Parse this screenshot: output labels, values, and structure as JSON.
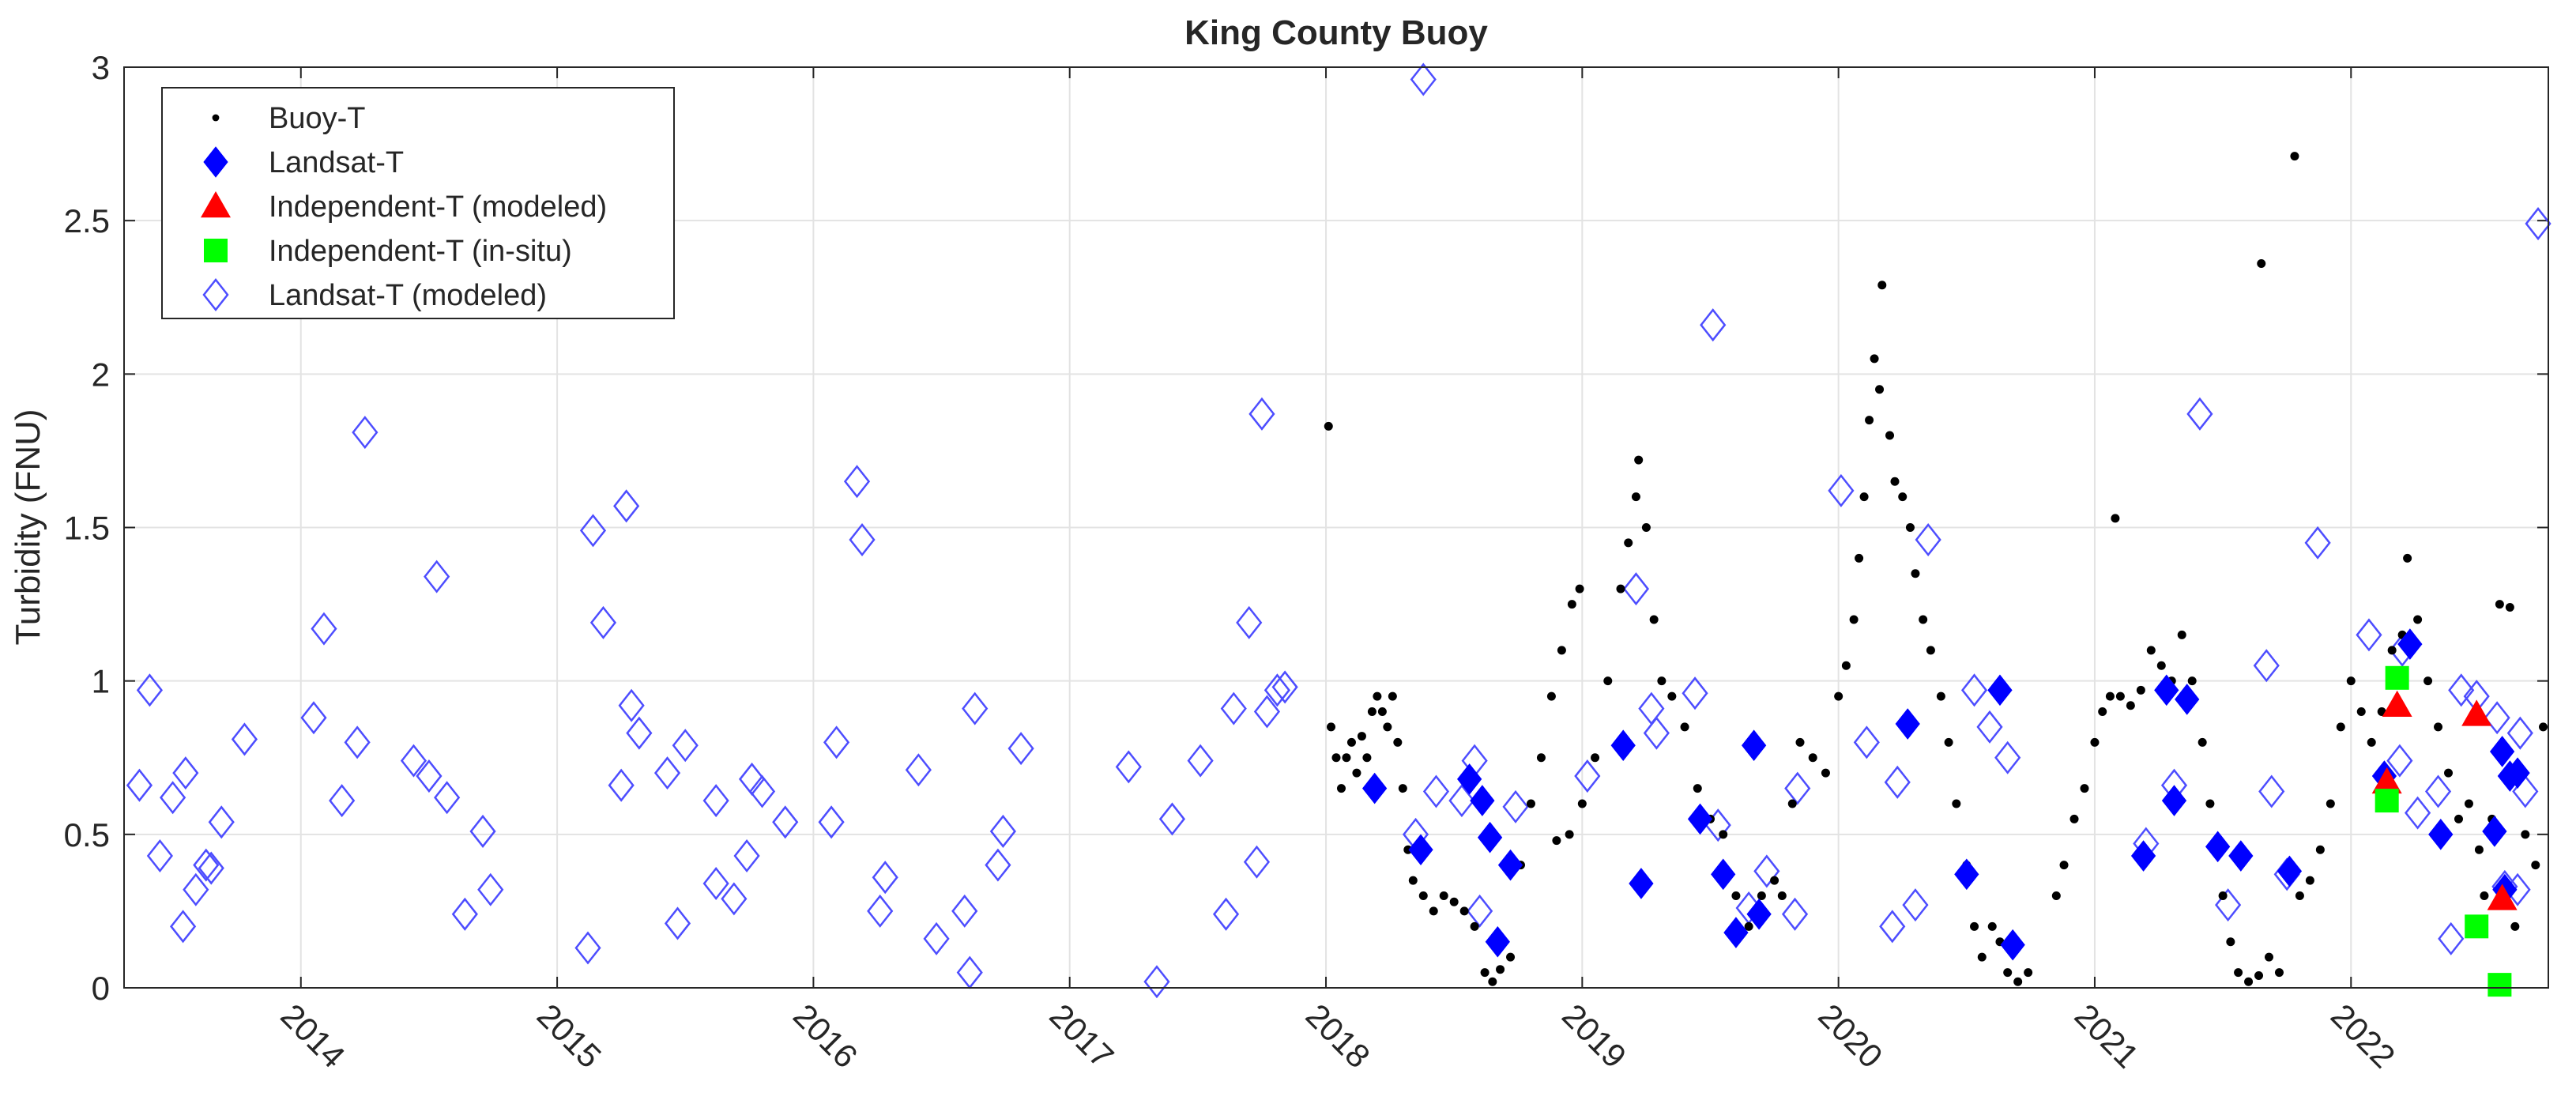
{
  "chart_data": {
    "type": "scatter",
    "title": "King County Buoy",
    "y_label": "Turbidity (FNU)",
    "xlim": [
      2013.31,
      2022.77
    ],
    "ylim": [
      0,
      3
    ],
    "xticks": [
      2014,
      2015,
      2016,
      2017,
      2018,
      2019,
      2020,
      2021,
      2022
    ],
    "yticks": [
      0,
      0.5,
      1,
      1.5,
      2,
      2.5,
      3
    ],
    "grid": true,
    "legend": "upper left",
    "series": [
      {
        "name": "Buoy-T",
        "color": "#000000",
        "marker": "dot",
        "x": [
          2018.01,
          2018.02,
          2018.04,
          2018.06,
          2018.08,
          2018.1,
          2018.12,
          2018.14,
          2018.16,
          2018.18,
          2018.2,
          2018.22,
          2018.24,
          2018.26,
          2018.28,
          2018.3,
          2018.32,
          2018.34,
          2018.38,
          2018.42,
          2018.46,
          2018.5,
          2018.54,
          2018.58,
          2018.62,
          2018.65,
          2018.68,
          2018.72,
          2018.76,
          2018.8,
          2018.84,
          2018.88,
          2018.9,
          2018.92,
          2018.95,
          2018.96,
          2018.99,
          2019.0,
          2019.05,
          2019.1,
          2019.15,
          2019.18,
          2019.21,
          2019.22,
          2019.25,
          2019.28,
          2019.31,
          2019.35,
          2019.4,
          2019.45,
          2019.5,
          2019.55,
          2019.6,
          2019.65,
          2019.7,
          2019.75,
          2019.78,
          2019.82,
          2019.85,
          2019.9,
          2019.95,
          2020.0,
          2020.03,
          2020.06,
          2020.08,
          2020.1,
          2020.12,
          2020.14,
          2020.16,
          2020.17,
          2020.2,
          2020.22,
          2020.25,
          2020.28,
          2020.3,
          2020.33,
          2020.36,
          2020.4,
          2020.43,
          2020.46,
          2020.5,
          2020.53,
          2020.56,
          2020.6,
          2020.63,
          2020.66,
          2020.7,
          2020.74,
          2020.85,
          2020.88,
          2020.92,
          2020.96,
          2021.0,
          2021.03,
          2021.06,
          2021.08,
          2021.1,
          2021.14,
          2021.18,
          2021.22,
          2021.26,
          2021.3,
          2021.34,
          2021.38,
          2021.42,
          2021.45,
          2021.48,
          2021.5,
          2021.53,
          2021.56,
          2021.6,
          2021.64,
          2021.65,
          2021.68,
          2021.72,
          2021.76,
          2021.78,
          2021.8,
          2021.84,
          2021.88,
          2021.92,
          2021.96,
          2022.0,
          2022.04,
          2022.08,
          2022.12,
          2022.16,
          2022.2,
          2022.22,
          2022.26,
          2022.3,
          2022.34,
          2022.38,
          2022.42,
          2022.46,
          2022.5,
          2022.52,
          2022.55,
          2022.58,
          2022.6,
          2022.62,
          2022.64,
          2022.68,
          2022.72,
          2022.75
        ],
        "values": [
          1.83,
          0.85,
          0.75,
          0.65,
          0.75,
          0.8,
          0.7,
          0.82,
          0.75,
          0.9,
          0.95,
          0.9,
          0.85,
          0.95,
          0.8,
          0.65,
          0.45,
          0.35,
          0.3,
          0.25,
          0.3,
          0.28,
          0.25,
          0.2,
          0.05,
          0.02,
          0.06,
          0.1,
          0.4,
          0.6,
          0.75,
          0.95,
          0.48,
          1.1,
          0.5,
          1.25,
          1.3,
          0.6,
          0.75,
          1.0,
          1.3,
          1.45,
          1.6,
          1.72,
          1.5,
          1.2,
          1.0,
          0.95,
          0.85,
          0.65,
          0.55,
          0.5,
          0.3,
          0.2,
          0.3,
          0.35,
          0.3,
          0.6,
          0.8,
          0.75,
          0.7,
          0.95,
          1.05,
          1.2,
          1.4,
          1.6,
          1.85,
          2.05,
          1.95,
          2.29,
          1.8,
          1.65,
          1.6,
          1.5,
          1.35,
          1.2,
          1.1,
          0.95,
          0.8,
          0.6,
          0.4,
          0.2,
          0.1,
          0.2,
          0.15,
          0.05,
          0.02,
          0.05,
          0.3,
          0.4,
          0.55,
          0.65,
          0.8,
          0.9,
          0.95,
          1.53,
          0.95,
          0.92,
          0.97,
          1.1,
          1.05,
          1.0,
          1.15,
          1.0,
          0.8,
          0.6,
          0.45,
          0.3,
          0.15,
          0.05,
          0.02,
          0.04,
          2.36,
          0.1,
          0.05,
          0.4,
          2.71,
          0.3,
          0.35,
          0.45,
          0.6,
          0.85,
          1.0,
          0.9,
          0.8,
          0.9,
          1.1,
          1.15,
          1.4,
          1.2,
          1.0,
          0.85,
          0.7,
          0.55,
          0.6,
          0.45,
          0.3,
          0.55,
          1.25,
          0.3,
          1.24,
          0.2,
          0.5,
          0.4,
          0.85
        ]
      },
      {
        "name": "Landsat-T",
        "color": "#0000ff",
        "marker": "diamond",
        "x": [
          2018.19,
          2018.37,
          2018.56,
          2018.61,
          2018.64,
          2018.67,
          2018.72,
          2019.16,
          2019.23,
          2019.46,
          2019.55,
          2019.6,
          2019.67,
          2019.69,
          2020.27,
          2020.5,
          2020.63,
          2020.68,
          2021.19,
          2021.31,
          2021.28,
          2021.36,
          2021.48,
          2021.57,
          2021.76,
          2022.13,
          2022.23,
          2022.35,
          2022.56,
          2022.59,
          2022.6,
          2022.62,
          2022.65
        ],
        "values": [
          0.65,
          0.45,
          0.68,
          0.61,
          0.49,
          0.15,
          0.4,
          0.79,
          0.34,
          0.55,
          0.37,
          0.18,
          0.79,
          0.24,
          0.86,
          0.37,
          0.97,
          0.14,
          0.43,
          0.61,
          0.97,
          0.94,
          0.46,
          0.43,
          0.38,
          0.69,
          1.12,
          0.5,
          0.51,
          0.77,
          0.32,
          0.69,
          0.7
        ]
      },
      {
        "name": "Independent-T (modeled)",
        "color": "#ff0000",
        "marker": "triangle",
        "x": [
          2022.14,
          2022.18,
          2022.49,
          2022.59
        ],
        "values": [
          0.67,
          0.92,
          0.89,
          0.29
        ]
      },
      {
        "name": "Independent-T (in-situ)",
        "color": "#00ff00",
        "marker": "square",
        "x": [
          2022.14,
          2022.18,
          2022.49,
          2022.58
        ],
        "values": [
          0.61,
          1.01,
          0.2,
          0.01
        ]
      },
      {
        "name": "Landsat-T (modeled)",
        "color": "#4d4dff",
        "marker": "open-diamond",
        "x": [
          2013.37,
          2013.41,
          2013.45,
          2013.5,
          2013.55,
          2013.54,
          2013.59,
          2013.63,
          2013.65,
          2013.69,
          2013.78,
          2014.05,
          2014.09,
          2014.16,
          2014.22,
          2014.25,
          2014.44,
          2014.5,
          2014.53,
          2014.57,
          2014.64,
          2014.71,
          2014.74,
          2015.12,
          2015.14,
          2015.18,
          2015.25,
          2015.27,
          2015.29,
          2015.32,
          2015.43,
          2015.47,
          2015.5,
          2015.62,
          2015.62,
          2015.69,
          2015.74,
          2015.76,
          2015.8,
          2015.89,
          2016.07,
          2016.09,
          2016.17,
          2016.19,
          2016.26,
          2016.28,
          2016.41,
          2016.48,
          2016.59,
          2016.61,
          2016.63,
          2016.72,
          2016.74,
          2016.81,
          2017.23,
          2017.34,
          2017.4,
          2017.51,
          2017.61,
          2017.64,
          2017.7,
          2017.73,
          2017.75,
          2017.77,
          2017.81,
          2017.84,
          2018.38,
          2018.35,
          2018.43,
          2018.53,
          2018.58,
          2018.6,
          2018.74,
          2019.02,
          2019.21,
          2019.27,
          2019.29,
          2019.44,
          2019.51,
          2019.53,
          2019.65,
          2019.72,
          2019.83,
          2019.84,
          2020.01,
          2020.11,
          2020.21,
          2020.23,
          2020.3,
          2020.35,
          2020.53,
          2020.59,
          2020.66,
          2021.2,
          2021.31,
          2021.41,
          2021.52,
          2021.67,
          2021.69,
          2021.75,
          2021.87,
          2022.07,
          2022.19,
          2022.2,
          2022.26,
          2022.34,
          2022.39,
          2022.43,
          2022.49,
          2022.57,
          2022.6,
          2022.66,
          2022.68,
          2022.73,
          2022.65
        ],
        "values": [
          0.66,
          0.97,
          0.43,
          0.62,
          0.7,
          0.2,
          0.32,
          0.4,
          0.39,
          0.54,
          0.81,
          0.88,
          1.17,
          0.61,
          0.8,
          1.81,
          0.74,
          0.69,
          1.34,
          0.62,
          0.24,
          0.51,
          0.32,
          0.13,
          1.49,
          1.19,
          0.66,
          1.57,
          0.92,
          0.83,
          0.7,
          0.21,
          0.79,
          0.34,
          0.61,
          0.29,
          0.43,
          0.68,
          0.64,
          0.54,
          0.54,
          0.8,
          1.65,
          1.46,
          0.25,
          0.36,
          0.71,
          0.16,
          0.25,
          0.05,
          0.91,
          0.4,
          0.51,
          0.78,
          0.72,
          0.02,
          0.55,
          0.74,
          0.24,
          0.91,
          1.19,
          0.41,
          1.87,
          0.9,
          0.97,
          0.98,
          2.96,
          0.5,
          0.64,
          0.61,
          0.74,
          0.25,
          0.59,
          0.69,
          1.3,
          0.91,
          0.83,
          0.96,
          2.16,
          0.53,
          0.26,
          0.38,
          0.24,
          0.65,
          1.62,
          0.8,
          0.2,
          0.67,
          0.27,
          1.46,
          0.97,
          0.85,
          0.75,
          0.47,
          0.66,
          1.87,
          0.27,
          1.05,
          0.64,
          0.37,
          1.45,
          1.15,
          0.74,
          1.1,
          0.57,
          0.64,
          0.16,
          0.97,
          0.95,
          0.88,
          0.33,
          0.83,
          0.64,
          2.49,
          0.32
        ]
      }
    ]
  }
}
